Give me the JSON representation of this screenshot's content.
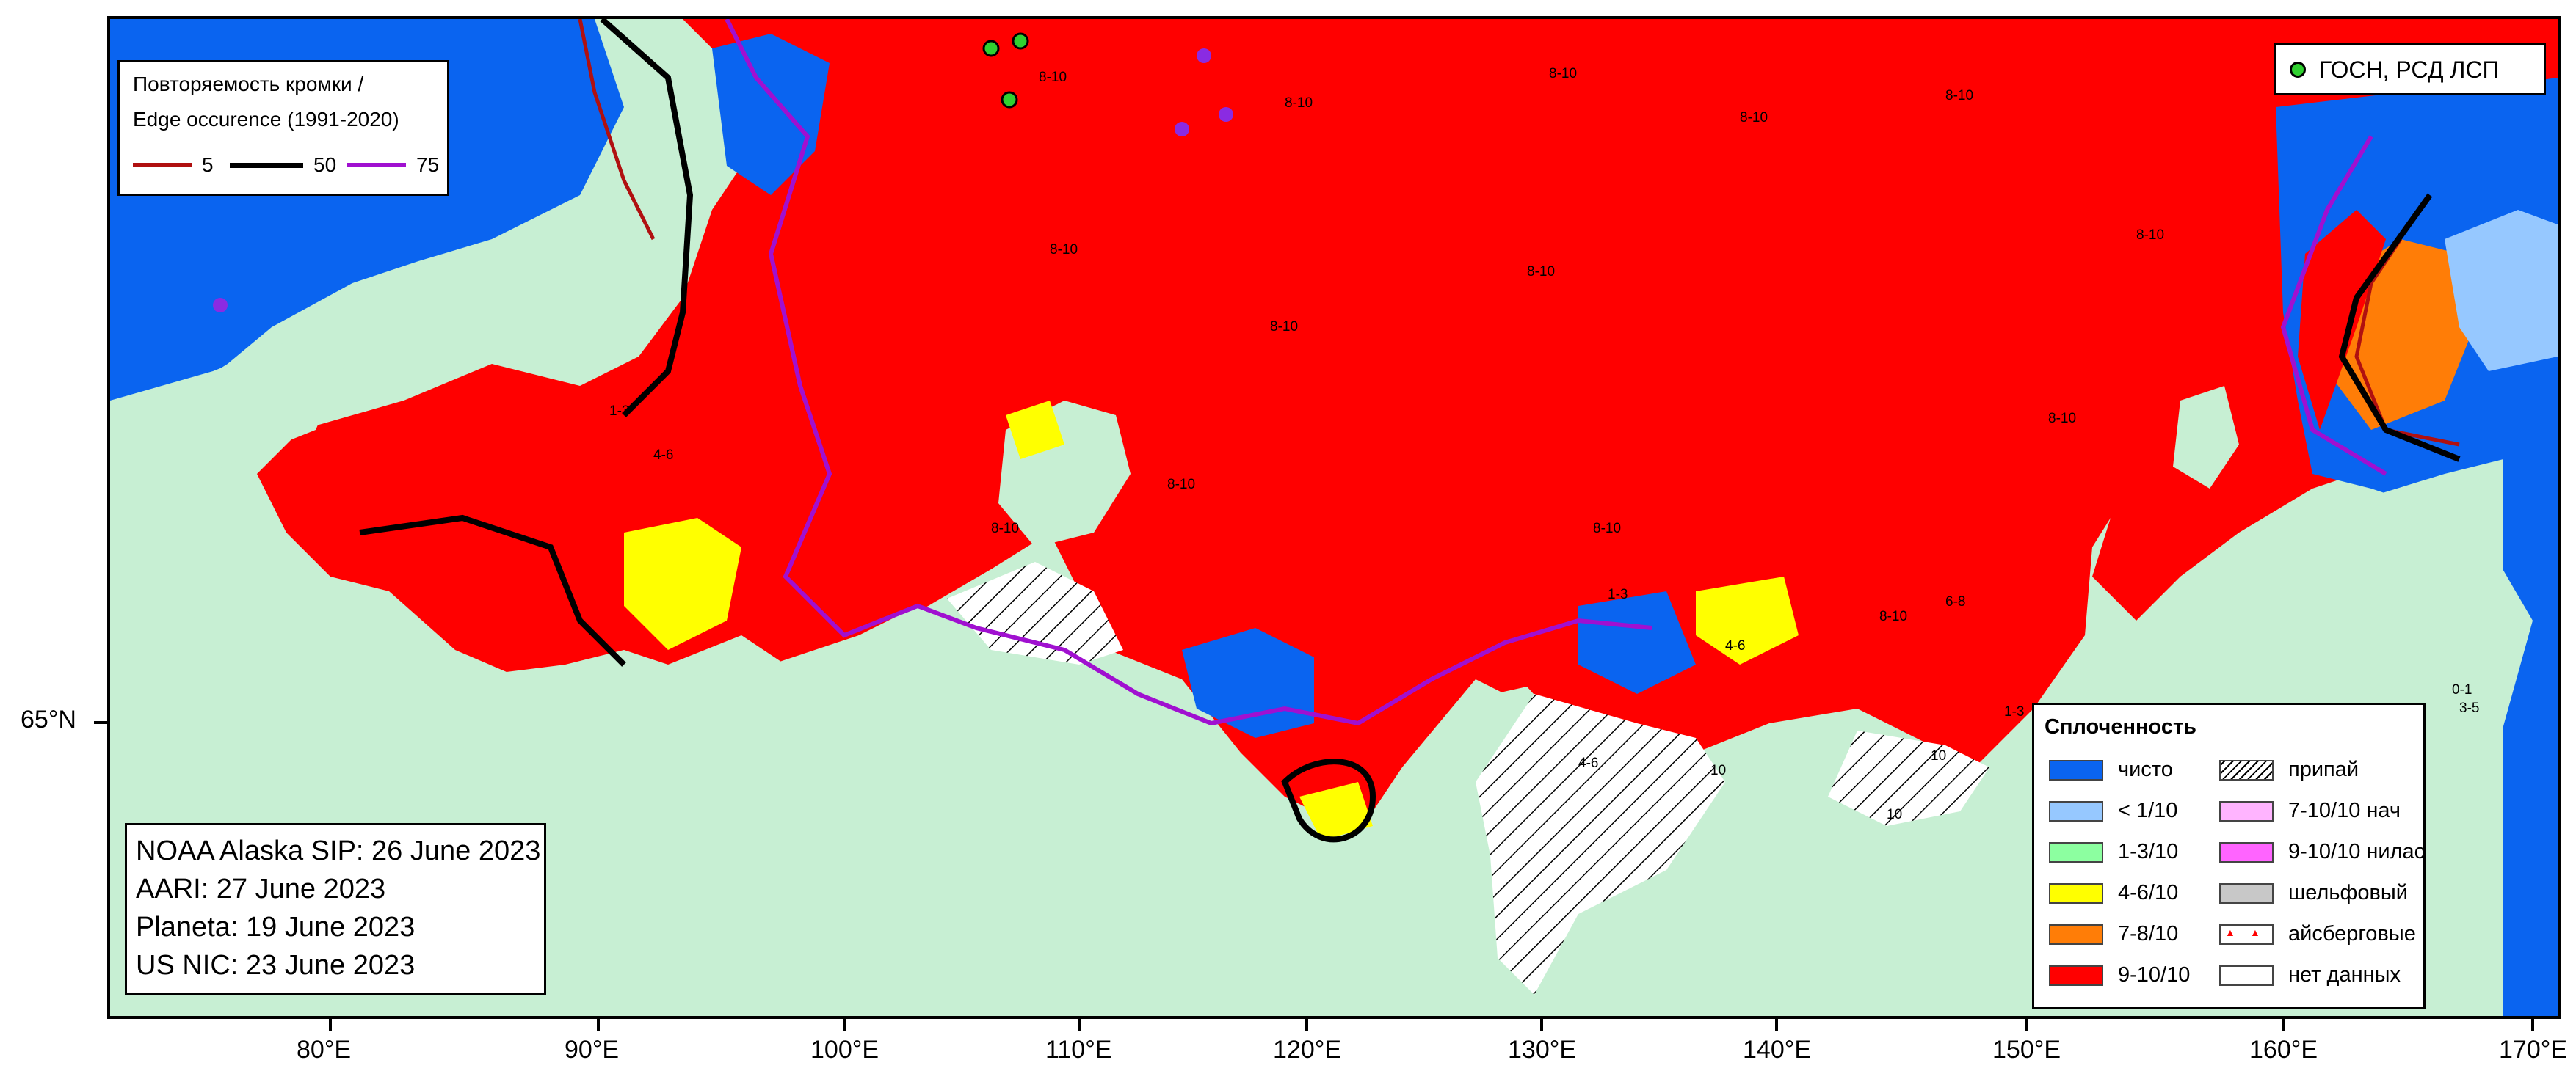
{
  "edge_legend": {
    "title_line1": "Повторяемость кромки /",
    "title_line2": "Edge occurence (1991-2020)",
    "items": [
      {
        "label": "5",
        "color": "#b01010"
      },
      {
        "label": "50",
        "color": "#000000"
      },
      {
        "label": "75",
        "color": "#a010d0"
      }
    ]
  },
  "station_legend": {
    "label": "ГОСН, РСД ЛСП",
    "color": "#30d030"
  },
  "sources": {
    "line1": "NOAA Alaska SIP: 26 June 2023",
    "line2": "AARI: 27 June 2023",
    "line3": "Planeta: 19 June 2023",
    "line4": "US NIC: 23 June 2023"
  },
  "concentration_legend": {
    "title": "Сплоченность",
    "left": [
      {
        "label": "чисто",
        "color": "#0a64f0"
      },
      {
        "label": "< 1/10",
        "color": "#96c8ff"
      },
      {
        "label": "1-3/10",
        "color": "#8cffa0"
      },
      {
        "label": "4-6/10",
        "color": "#ffff00"
      },
      {
        "label": "7-8/10",
        "color": "#ff7d07"
      },
      {
        "label": "9-10/10",
        "color": "#ff0000"
      }
    ],
    "right": [
      {
        "label": "припай",
        "pattern": "hatch"
      },
      {
        "label": "7-10/10 нач",
        "color": "#ffb4ff"
      },
      {
        "label": "9-10/10 нилас",
        "color": "#ff64ff"
      },
      {
        "label": "шельфовый",
        "color": "#c8c8c8"
      },
      {
        "label": "айсберговые",
        "pattern": "icebergs"
      },
      {
        "label": "нет данных",
        "color": "#ffffff"
      }
    ]
  },
  "axes": {
    "lat_label": "65°N",
    "lon_labels": [
      "80°E",
      "90°E",
      "100°E",
      "110°E",
      "120°E",
      "130°E",
      "140°E",
      "150°E",
      "160°E",
      "170°E"
    ]
  },
  "map_labels": [
    "8-10",
    "8-10",
    "8-10",
    "8-10",
    "8-10",
    "8-10",
    "8-10",
    "8-10",
    "8-10",
    "8-10",
    "8-10",
    "8-10",
    "8-10",
    "8-10",
    "1-3",
    "4-6",
    "6-8",
    "1-3",
    "4-6",
    "10",
    "10",
    "10",
    "0-1",
    "3-5",
    "1-3",
    "4-6"
  ],
  "colors": {
    "land": "#c7efd3",
    "water_open": "#0a64f0",
    "ice_9_10": "#ff0000",
    "ice_4_6": "#ffff00",
    "ice_7_8": "#ff7d07",
    "ice_lt1": "#96c8ff",
    "ice_1_3": "#8cffa0"
  }
}
